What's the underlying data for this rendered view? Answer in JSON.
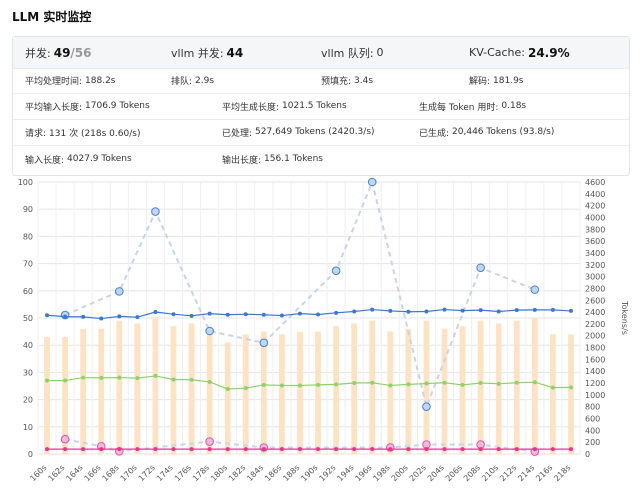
{
  "title": "LLM 实时监控",
  "stats": {
    "concurrency_label": "并发:",
    "concurrency_value": "49",
    "concurrency_total": "/56",
    "vllm_concurrency_label": "vllm 并发:",
    "vllm_concurrency_value": "44",
    "vllm_queue_label": "vllm 队列:",
    "vllm_queue_value": "0",
    "kv_cache_label": "KV-Cache:",
    "kv_cache_value": "24.9%",
    "avg_time_label": "平均处理时间:",
    "avg_time_value": "188.2s",
    "queue_label": "排队:",
    "queue_value": "2.9s",
    "prefill_label": "预填充:",
    "prefill_value": "3.4s",
    "decode_label": "解码:",
    "decode_value": "181.9s",
    "avg_input_label": "平均输入长度:",
    "avg_input_value": "1706.9 Tokens",
    "avg_gen_label": "平均生成长度:",
    "avg_gen_value": "1021.5 Tokens",
    "per_token_label": "生成每 Token 用时:",
    "per_token_value": "0.18s",
    "requests_label": "请求:",
    "requests_value": "131 次 (218s 0.60/s)",
    "processed_label": "已处理:",
    "processed_value": "527,649 Tokens (2420.3/s)",
    "generated_label": "已生成:",
    "generated_value": "20,446 Tokens (93.8/s)",
    "input_len_label": "输入长度:",
    "input_len_value": "4027.9 Tokens",
    "output_len_label": "输出长度:",
    "output_len_value": "156.1 Tokens"
  },
  "chart_data": {
    "type": "line",
    "x": [
      "160s",
      "162s",
      "164s",
      "166s",
      "168s",
      "170s",
      "172s",
      "174s",
      "176s",
      "178s",
      "180s",
      "182s",
      "184s",
      "186s",
      "188s",
      "190s",
      "192s",
      "194s",
      "196s",
      "198s",
      "200s",
      "202s",
      "204s",
      "206s",
      "208s",
      "210s",
      "212s",
      "214s",
      "216s",
      "218s"
    ],
    "ylim": [
      0,
      100
    ],
    "y2lim": [
      0,
      4600
    ],
    "y_ticks": [
      0,
      10,
      20,
      30,
      40,
      50,
      60,
      70,
      80,
      90,
      100
    ],
    "y2_ticks": [
      0,
      200,
      400,
      600,
      800,
      1000,
      1200,
      1400,
      1600,
      1800,
      2000,
      2200,
      2400,
      2600,
      2800,
      3000,
      3200,
      3400,
      3600,
      3800,
      4000,
      4200,
      4400,
      4600
    ],
    "y2label": "Tokens/s",
    "grid": true,
    "colors": {
      "bars": "#fde3c3",
      "blue": "#3a78d6",
      "green": "#8fd16a",
      "pink": "#e4368c",
      "dashed": "#c7d4ea",
      "circle_blue_fill": "#bcd8f2",
      "circle_blue_stroke": "#4d7fc4",
      "circle_pink_fill": "#f5b8d9",
      "circle_pink_stroke": "#d65aa3"
    },
    "series": [
      {
        "kind": "bar",
        "axis": "left",
        "values": [
          43,
          43,
          46,
          46,
          49,
          48,
          50,
          47,
          48,
          44,
          41,
          44,
          45,
          44,
          45,
          45,
          47,
          48,
          49,
          45,
          46,
          49,
          46,
          47,
          49,
          48,
          49,
          50,
          44,
          44
        ]
      },
      {
        "kind": "line",
        "axis": "left",
        "values": [
          51,
          50.5,
          50.4,
          49.8,
          50.6,
          50.3,
          52.2,
          51.4,
          50.8,
          51.6,
          51.2,
          51.4,
          51.2,
          50.9,
          51.6,
          51.3,
          51.9,
          52.4,
          53.1,
          52.6,
          52.3,
          52.4,
          53.1,
          52.7,
          52.9,
          52.4,
          52.9,
          53.0,
          53.0,
          52.6
        ]
      },
      {
        "kind": "line",
        "axis": "left",
        "values": [
          27,
          27,
          28.1,
          28,
          28.1,
          27.9,
          28.7,
          27.4,
          27.3,
          26.5,
          23.9,
          24.2,
          25.4,
          25.2,
          25.2,
          25.4,
          25.6,
          26.1,
          26.2,
          25.2,
          25.6,
          25.9,
          26.2,
          25.4,
          26.1,
          25.8,
          26.2,
          26.4,
          24.4,
          24.5
        ]
      },
      {
        "kind": "line",
        "axis": "left",
        "values": [
          1.8,
          1.8,
          1.8,
          1.8,
          1.8,
          1.8,
          1.8,
          1.8,
          1.8,
          1.8,
          1.8,
          1.8,
          1.8,
          1.8,
          1.8,
          1.8,
          1.8,
          1.8,
          1.8,
          1.8,
          1.8,
          1.8,
          1.8,
          1.8,
          1.8,
          1.8,
          1.8,
          1.8,
          1.8,
          1.8
        ]
      },
      {
        "kind": "dashed",
        "axis": "right",
        "points": [
          [
            1,
            2350
          ],
          [
            4,
            2750
          ],
          [
            6,
            4100
          ],
          [
            9,
            2080
          ],
          [
            12,
            1880
          ],
          [
            16,
            3100
          ],
          [
            18,
            4600
          ],
          [
            21,
            800
          ],
          [
            24,
            3150
          ],
          [
            27,
            2780
          ]
        ]
      },
      {
        "kind": "dashed",
        "axis": "right",
        "points": [
          [
            1,
            250
          ],
          [
            3,
            130
          ],
          [
            4,
            45
          ],
          [
            9,
            210
          ],
          [
            12,
            110
          ],
          [
            19,
            110
          ],
          [
            21,
            160
          ],
          [
            24,
            160
          ],
          [
            27,
            40
          ]
        ]
      }
    ]
  }
}
